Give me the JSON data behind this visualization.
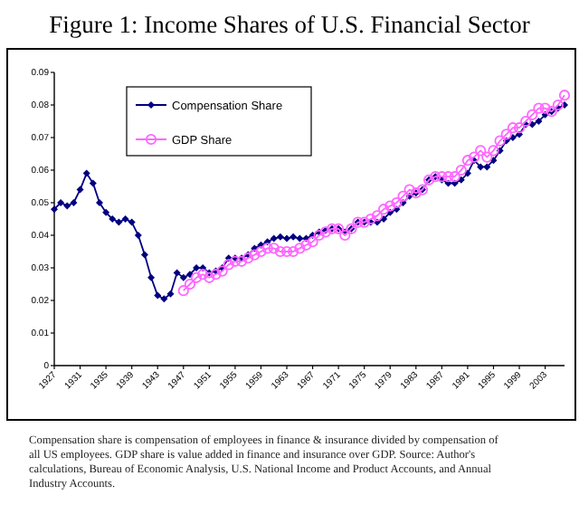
{
  "chart_data": {
    "type": "line",
    "title": "Figure 1: Income Shares of U.S. Financial Sector",
    "series": [
      {
        "name": "Compensation Share",
        "color": "#000080",
        "marker": "diamond",
        "x": [
          1927,
          1928,
          1929,
          1930,
          1931,
          1932,
          1933,
          1934,
          1935,
          1936,
          1937,
          1938,
          1939,
          1940,
          1941,
          1942,
          1943,
          1944,
          1945,
          1946,
          1947,
          1948,
          1949,
          1950,
          1951,
          1952,
          1953,
          1954,
          1955,
          1956,
          1957,
          1958,
          1959,
          1960,
          1961,
          1962,
          1963,
          1964,
          1965,
          1966,
          1967,
          1968,
          1969,
          1970,
          1971,
          1972,
          1973,
          1974,
          1975,
          1976,
          1977,
          1978,
          1979,
          1980,
          1981,
          1982,
          1983,
          1984,
          1985,
          1986,
          1987,
          1988,
          1989,
          1990,
          1991,
          1992,
          1993,
          1994,
          1995,
          1996,
          1997,
          1998,
          1999,
          2000,
          2001,
          2002,
          2003,
          2004,
          2005,
          2006
        ],
        "values": [
          0.048,
          0.05,
          0.049,
          0.05,
          0.054,
          0.059,
          0.056,
          0.05,
          0.047,
          0.045,
          0.044,
          0.045,
          0.044,
          0.04,
          0.034,
          0.027,
          0.0215,
          0.0205,
          0.022,
          0.0285,
          0.027,
          0.028,
          0.03,
          0.03,
          0.0285,
          0.029,
          0.03,
          0.033,
          0.033,
          0.033,
          0.034,
          0.036,
          0.037,
          0.038,
          0.039,
          0.0395,
          0.039,
          0.0395,
          0.039,
          0.039,
          0.04,
          0.041,
          0.0415,
          0.042,
          0.042,
          0.041,
          0.042,
          0.044,
          0.044,
          0.044,
          0.044,
          0.045,
          0.047,
          0.048,
          0.05,
          0.052,
          0.053,
          0.054,
          0.057,
          0.058,
          0.057,
          0.056,
          0.056,
          0.057,
          0.059,
          0.063,
          0.061,
          0.061,
          0.063,
          0.066,
          0.069,
          0.07,
          0.071,
          0.074,
          0.074,
          0.075,
          0.077,
          0.078,
          0.079,
          0.08
        ]
      },
      {
        "name": "GDP Share",
        "color": "#ff66ff",
        "marker": "circle",
        "x": [
          1947,
          1948,
          1949,
          1950,
          1951,
          1952,
          1953,
          1954,
          1955,
          1956,
          1957,
          1958,
          1959,
          1960,
          1961,
          1962,
          1963,
          1964,
          1965,
          1966,
          1967,
          1968,
          1969,
          1970,
          1971,
          1972,
          1973,
          1974,
          1975,
          1976,
          1977,
          1978,
          1979,
          1980,
          1981,
          1982,
          1983,
          1984,
          1985,
          1986,
          1987,
          1988,
          1989,
          1990,
          1991,
          1992,
          1993,
          1994,
          1995,
          1996,
          1997,
          1998,
          1999,
          2000,
          2001,
          2002,
          2003,
          2004,
          2005,
          2006
        ],
        "values": [
          0.023,
          0.025,
          0.027,
          0.028,
          0.027,
          0.028,
          0.029,
          0.031,
          0.032,
          0.032,
          0.033,
          0.034,
          0.035,
          0.036,
          0.036,
          0.035,
          0.035,
          0.035,
          0.036,
          0.037,
          0.038,
          0.04,
          0.041,
          0.042,
          0.042,
          0.04,
          0.042,
          0.044,
          0.044,
          0.045,
          0.046,
          0.048,
          0.049,
          0.05,
          0.052,
          0.054,
          0.053,
          0.054,
          0.057,
          0.058,
          0.058,
          0.058,
          0.058,
          0.06,
          0.063,
          0.064,
          0.066,
          0.064,
          0.066,
          0.069,
          0.071,
          0.073,
          0.073,
          0.075,
          0.077,
          0.079,
          0.079,
          0.078,
          0.08,
          0.083
        ]
      }
    ],
    "xlim": [
      1927,
      2006
    ],
    "xticks": [
      1927,
      1931,
      1935,
      1939,
      1943,
      1947,
      1951,
      1955,
      1959,
      1963,
      1967,
      1971,
      1975,
      1979,
      1983,
      1987,
      1991,
      1995,
      1999,
      2003
    ],
    "ylim": [
      0,
      0.09
    ],
    "yticks": [
      0,
      0.01,
      0.02,
      0.03,
      0.04,
      0.05,
      0.06,
      0.07,
      0.08,
      0.09
    ],
    "grid": false,
    "legend": "top left",
    "annotations": [
      "Compensation share is compensation of employees in finance & insurance divided by compensation of all US employees. GDP share is value added in finance and insurance over GDP. Source: Author's calculations, Bureau of Economic Analysis, U.S. National Income and Product Accounts, and Annual Industry Accounts."
    ]
  }
}
